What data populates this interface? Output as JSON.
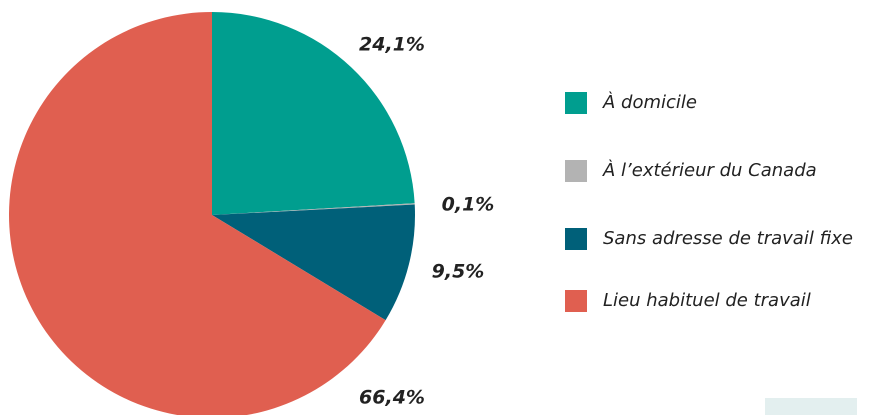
{
  "chart_data": {
    "type": "pie",
    "categories": [
      "À domicile",
      "À l’extérieur du Canada",
      "Sans adresse de travail fixe",
      "Lieu habituel de travail"
    ],
    "values": [
      24.1,
      0.1,
      9.5,
      66.4
    ],
    "value_labels": [
      "24,1%",
      "0,1%",
      "9,5%",
      "66,4%"
    ],
    "colors": [
      "#009e8f",
      "#b3b3b3",
      "#006079",
      "#e05f50"
    ],
    "legend": "right"
  }
}
